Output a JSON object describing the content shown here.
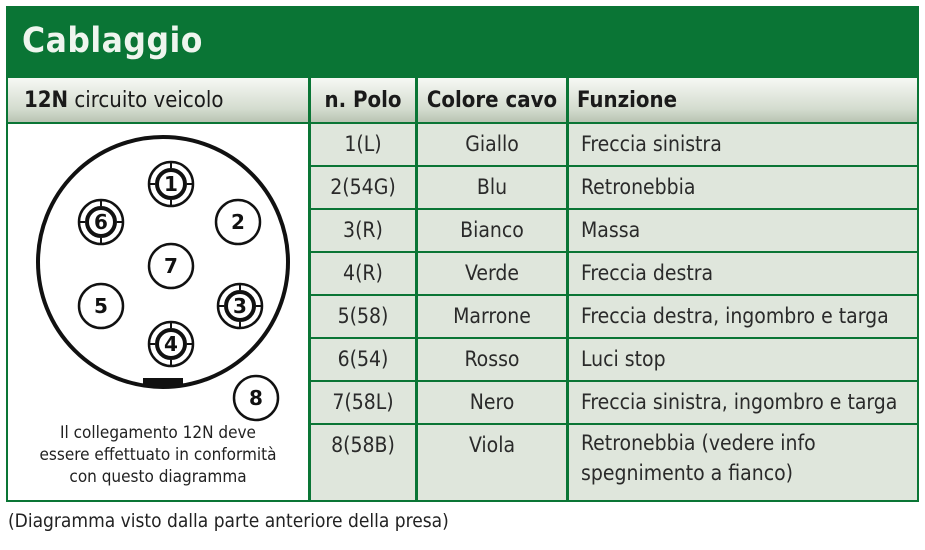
{
  "title": "Cablaggio",
  "left_header": {
    "bold": "12N",
    "rest": " circuito veicolo"
  },
  "columns": [
    "n. Polo",
    "Colore cavo",
    "Funzione"
  ],
  "rows": [
    {
      "polo": "1(L)",
      "colore": "Giallo",
      "funzione": "Freccia sinistra"
    },
    {
      "polo": "2(54G)",
      "colore": "Blu",
      "funzione": "Retronebbia"
    },
    {
      "polo": "3(R)",
      "colore": "Bianco",
      "funzione": "Massa"
    },
    {
      "polo": "4(R)",
      "colore": "Verde",
      "funzione": "Freccia destra"
    },
    {
      "polo": "5(58)",
      "colore": "Marrone",
      "funzione": "Freccia destra, ingombro e targa"
    },
    {
      "polo": "6(54)",
      "colore": "Rosso",
      "funzione": "Luci stop"
    },
    {
      "polo": "7(58L)",
      "colore": "Nero",
      "funzione": "Freccia sinistra, ingombro e targa"
    },
    {
      "polo": "8(58B)",
      "colore": "Viola",
      "funzione": "Retronebbia (vedere info",
      "funzione2": "spegnimento a fianco)"
    }
  ],
  "pins": [
    "1",
    "2",
    "3",
    "4",
    "5",
    "6",
    "7",
    "8"
  ],
  "note": [
    "Il collegamento 12N deve",
    "essere effettuato in conformità",
    "con questo diagramma"
  ],
  "caption": "(Diagramma visto dalla parte anteriore della presa)",
  "colors": {
    "green": "#0a7535",
    "row": "#dfe6dc"
  }
}
